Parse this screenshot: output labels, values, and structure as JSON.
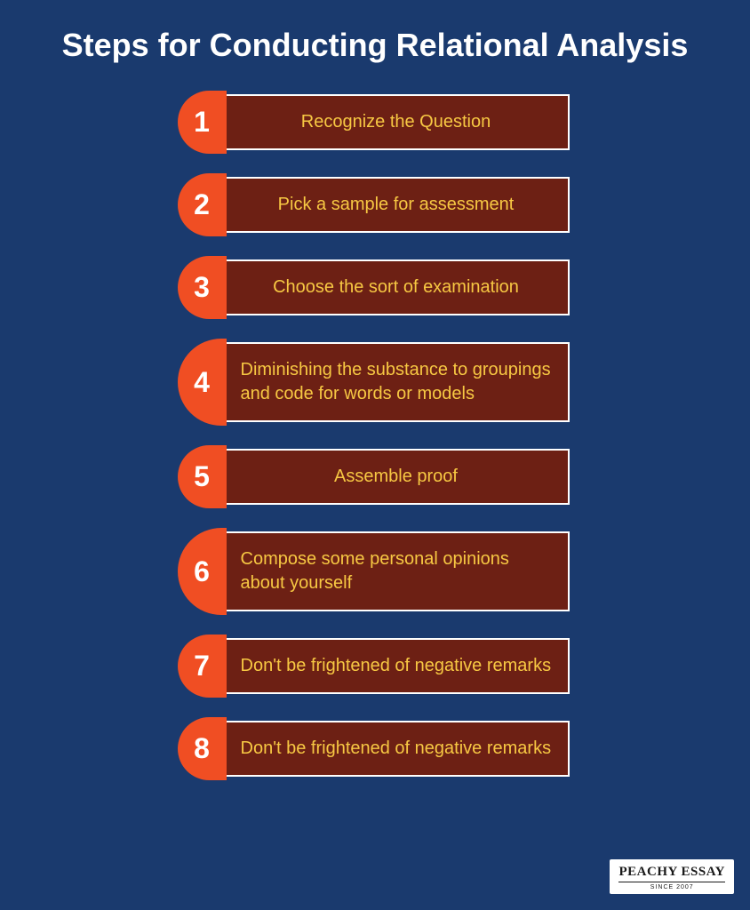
{
  "title": "Steps for Conducting Relational Analysis",
  "background_color": "#1a3a6e",
  "title_color": "#ffffff",
  "title_fontsize": 36,
  "number_badge_color": "#f04e23",
  "number_text_color": "#ffffff",
  "step_box_bg": "#6d2014",
  "step_box_border": "#ffffff",
  "step_text_color": "#f7c843",
  "step_fontsize": 20,
  "steps": [
    {
      "num": "1",
      "text": "Recognize the Question",
      "align": "center"
    },
    {
      "num": "2",
      "text": "Pick a sample for assessment",
      "align": "center"
    },
    {
      "num": "3",
      "text": "Choose the sort of examination",
      "align": "center"
    },
    {
      "num": "4",
      "text": "Diminishing the substance to groupings and code for words or models",
      "align": "left"
    },
    {
      "num": "5",
      "text": "Assemble proof",
      "align": "center"
    },
    {
      "num": "6",
      "text": "Compose some personal opinions about yourself",
      "align": "left"
    },
    {
      "num": "7",
      "text": "Don't be frightened of negative remarks",
      "align": "left"
    },
    {
      "num": "8",
      "text": "Don't be frightened of negative remarks",
      "align": "left"
    }
  ],
  "logo": {
    "main": "PEACHY ESSAY",
    "sub": "SINCE 2007"
  }
}
